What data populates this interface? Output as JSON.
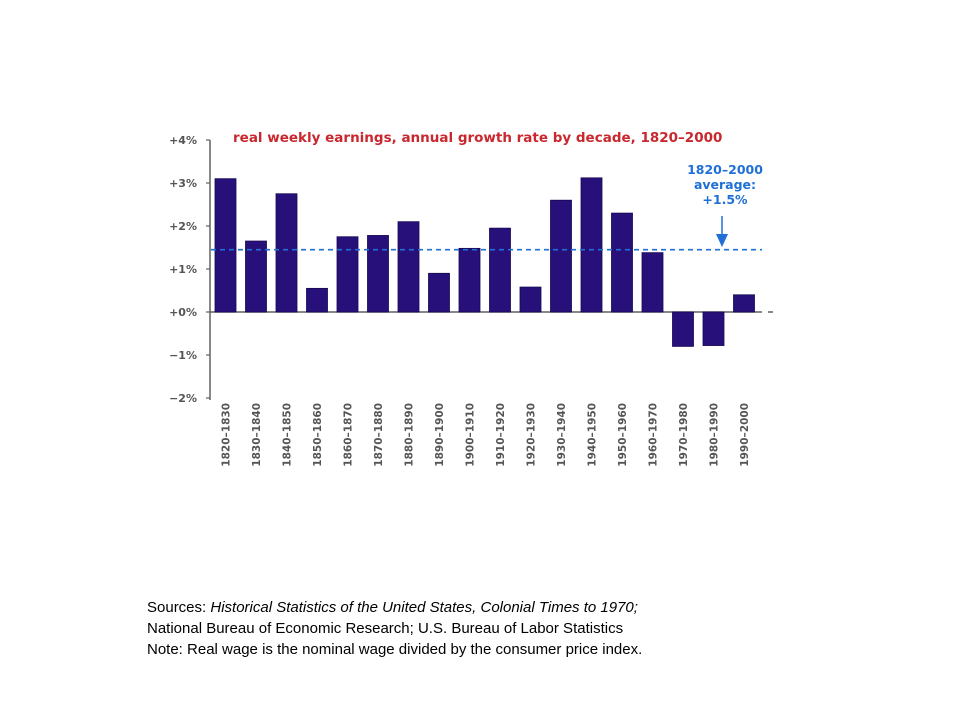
{
  "colors": {
    "bar": "#28107a",
    "title": "#c8282e",
    "average": "#1f6fd6",
    "axis": "#606060",
    "tick_text": "#555555"
  },
  "chart_data": {
    "type": "bar",
    "title": "real weekly earnings, annual growth rate by decade, 1820–2000",
    "xlabel": "",
    "ylabel": "",
    "ylim": [
      -2,
      4
    ],
    "yticks": [
      4,
      3,
      2,
      1,
      0,
      -1,
      -2
    ],
    "ytick_labels": [
      "+4%",
      "+3%",
      "+2%",
      "+1%",
      "+0%",
      "−1%",
      "−2%"
    ],
    "grid": false,
    "categories": [
      "1820–1830",
      "1830–1840",
      "1840–1850",
      "1850–1860",
      "1860–1870",
      "1870–1880",
      "1880–1890",
      "1890–1900",
      "1900–1910",
      "1910–1920",
      "1920–1930",
      "1930–1940",
      "1940–1950",
      "1950–1960",
      "1960–1970",
      "1970–1980",
      "1980–1990",
      "1990–2000"
    ],
    "values": [
      3.1,
      1.65,
      2.75,
      0.55,
      1.75,
      1.78,
      2.1,
      0.9,
      1.48,
      1.95,
      0.58,
      2.6,
      3.12,
      2.3,
      1.38,
      -0.8,
      -0.78,
      0.4
    ],
    "reference_line": {
      "value": 1.45,
      "label_lines": [
        "1820–2000",
        "average:",
        "+1.5%"
      ]
    }
  },
  "notes": {
    "sources_prefix": "Sources: ",
    "sources_title": "Historical Statistics of the United States, Colonial Times to 1970;",
    "line2": "National Bureau of Economic Research; U.S. Bureau of Labor Statistics",
    "line3": "Note: Real wage is the nominal wage divided by the consumer price index."
  }
}
